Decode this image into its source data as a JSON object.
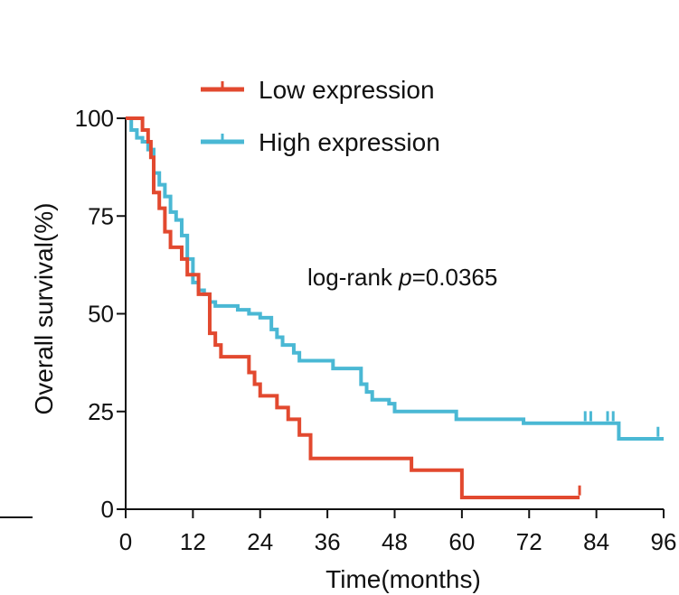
{
  "chart_data": {
    "type": "line",
    "subtype": "kaplan-meier step",
    "title": "",
    "xlabel": "Time(months)",
    "ylabel": "Overall survival(%)",
    "xlim": [
      0,
      96
    ],
    "ylim": [
      0,
      100
    ],
    "xticks": [
      0,
      12,
      24,
      36,
      48,
      60,
      72,
      84,
      96
    ],
    "yticks": [
      0,
      25,
      50,
      75,
      100
    ],
    "legend_position": "top-center",
    "annotation": {
      "prefix": "log-rank ",
      "italic": "p",
      "suffix": "=0.0365"
    },
    "series": [
      {
        "name": "Low expression",
        "color": "#e2492f",
        "steps": [
          [
            0,
            100
          ],
          [
            2,
            100
          ],
          [
            3,
            97
          ],
          [
            4,
            94
          ],
          [
            4.5,
            90
          ],
          [
            5,
            81
          ],
          [
            6,
            77
          ],
          [
            7,
            71
          ],
          [
            8,
            67
          ],
          [
            10,
            64
          ],
          [
            11,
            60
          ],
          [
            13,
            55
          ],
          [
            14,
            55
          ],
          [
            15,
            45
          ],
          [
            16,
            42
          ],
          [
            17,
            39
          ],
          [
            20,
            39
          ],
          [
            22,
            35
          ],
          [
            23,
            32
          ],
          [
            24,
            29
          ],
          [
            27,
            26
          ],
          [
            29,
            23
          ],
          [
            31,
            19
          ],
          [
            33,
            13
          ],
          [
            50,
            13
          ],
          [
            51,
            10
          ],
          [
            58,
            10
          ],
          [
            60,
            3
          ],
          [
            81,
            3
          ]
        ],
        "censored": [
          [
            81,
            4
          ]
        ]
      },
      {
        "name": "High expression",
        "color": "#4ab8d4",
        "steps": [
          [
            0,
            100
          ],
          [
            1,
            97
          ],
          [
            2,
            95
          ],
          [
            3,
            94
          ],
          [
            4,
            92
          ],
          [
            5,
            86
          ],
          [
            6,
            83
          ],
          [
            7,
            80
          ],
          [
            8,
            76
          ],
          [
            9,
            74
          ],
          [
            10,
            70
          ],
          [
            11,
            64
          ],
          [
            12,
            58
          ],
          [
            13,
            56
          ],
          [
            14,
            55
          ],
          [
            15,
            53
          ],
          [
            16,
            52
          ],
          [
            20,
            51
          ],
          [
            22,
            50
          ],
          [
            24,
            49
          ],
          [
            26,
            46
          ],
          [
            27,
            44
          ],
          [
            28,
            42
          ],
          [
            30,
            40
          ],
          [
            31,
            38
          ],
          [
            36,
            38
          ],
          [
            37,
            36
          ],
          [
            41,
            36
          ],
          [
            42,
            32
          ],
          [
            43,
            30
          ],
          [
            44,
            28
          ],
          [
            47,
            27
          ],
          [
            48,
            25
          ],
          [
            58,
            25
          ],
          [
            59,
            23
          ],
          [
            70,
            23
          ],
          [
            71,
            22
          ],
          [
            87,
            22
          ],
          [
            88,
            18
          ],
          [
            96,
            18
          ]
        ],
        "censored": [
          [
            82,
            23
          ],
          [
            83,
            23
          ],
          [
            86,
            23
          ],
          [
            87,
            23
          ],
          [
            95,
            19
          ]
        ]
      }
    ]
  }
}
